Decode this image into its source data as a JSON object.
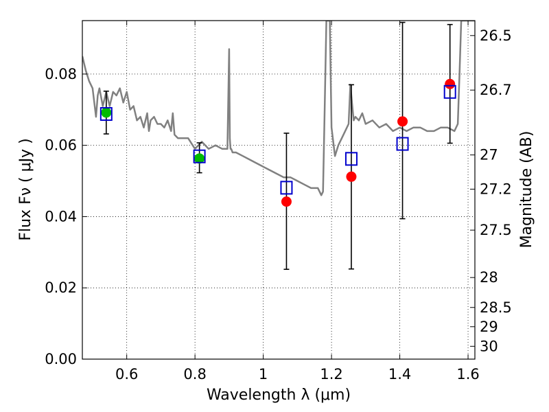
{
  "chart_data": {
    "type": "scatter",
    "xlabel": "Wavelength  λ (μm)",
    "ylabel": "Flux  Fν  ( μJy )",
    "y2label": "Magnitude (AB)",
    "xlim": [
      0.47,
      1.62
    ],
    "ylim": [
      0.0,
      0.095
    ],
    "grid": true,
    "x_ticks": [
      0.6,
      0.8,
      1.0,
      1.2,
      1.4,
      1.6
    ],
    "x_tick_labels": [
      "0.6",
      "0.8",
      "1",
      "1.2",
      "1.4",
      "1.6"
    ],
    "y_ticks": [
      0.0,
      0.02,
      0.04,
      0.06,
      0.08
    ],
    "y_tick_labels": [
      "0.00",
      "0.02",
      "0.04",
      "0.06",
      "0.08"
    ],
    "y2_ticks": [
      {
        "label": "26.5",
        "flux": 0.0908
      },
      {
        "label": "26.7",
        "flux": 0.0755
      },
      {
        "label": "27",
        "flux": 0.0573
      },
      {
        "label": "27.2",
        "flux": 0.0477
      },
      {
        "label": "27.5",
        "flux": 0.0362
      },
      {
        "label": "28",
        "flux": 0.0229
      },
      {
        "label": "28.5",
        "flux": 0.0145
      },
      {
        "label": "29",
        "flux": 0.0091
      },
      {
        "label": "30",
        "flux": 0.0036
      }
    ],
    "series": [
      {
        "name": "model-spectrum",
        "kind": "line",
        "color": "#808080",
        "x": [
          0.47,
          0.48,
          0.49,
          0.5,
          0.505,
          0.51,
          0.515,
          0.52,
          0.53,
          0.54,
          0.55,
          0.56,
          0.57,
          0.58,
          0.59,
          0.6,
          0.61,
          0.62,
          0.63,
          0.64,
          0.65,
          0.66,
          0.665,
          0.67,
          0.68,
          0.69,
          0.7,
          0.71,
          0.72,
          0.73,
          0.735,
          0.74,
          0.75,
          0.76,
          0.78,
          0.8,
          0.82,
          0.84,
          0.86,
          0.88,
          0.895,
          0.9,
          0.902,
          0.904,
          0.906,
          0.91,
          0.92,
          0.94,
          0.96,
          0.98,
          1.0,
          1.02,
          1.04,
          1.06,
          1.08,
          1.1,
          1.12,
          1.14,
          1.16,
          1.17,
          1.175,
          1.18,
          1.185,
          1.19,
          1.195,
          1.2,
          1.21,
          1.22,
          1.23,
          1.24,
          1.25,
          1.255,
          1.26,
          1.265,
          1.27,
          1.28,
          1.29,
          1.3,
          1.32,
          1.34,
          1.36,
          1.38,
          1.4,
          1.42,
          1.44,
          1.46,
          1.48,
          1.5,
          1.52,
          1.54,
          1.56,
          1.57,
          1.575,
          1.58,
          1.59,
          1.6,
          1.61,
          1.62
        ],
        "y": [
          0.085,
          0.081,
          0.078,
          0.076,
          0.072,
          0.068,
          0.074,
          0.076,
          0.071,
          0.075,
          0.071,
          0.075,
          0.074,
          0.076,
          0.072,
          0.075,
          0.07,
          0.071,
          0.067,
          0.068,
          0.065,
          0.069,
          0.064,
          0.067,
          0.068,
          0.066,
          0.066,
          0.065,
          0.067,
          0.064,
          0.069,
          0.063,
          0.062,
          0.062,
          0.062,
          0.059,
          0.061,
          0.059,
          0.06,
          0.059,
          0.059,
          0.087,
          0.062,
          0.059,
          0.059,
          0.058,
          0.058,
          0.057,
          0.056,
          0.055,
          0.054,
          0.053,
          0.052,
          0.051,
          0.051,
          0.05,
          0.049,
          0.048,
          0.048,
          0.046,
          0.047,
          0.07,
          0.095,
          0.095,
          0.095,
          0.065,
          0.057,
          0.06,
          0.062,
          0.064,
          0.066,
          0.077,
          0.072,
          0.067,
          0.068,
          0.067,
          0.069,
          0.066,
          0.067,
          0.065,
          0.066,
          0.064,
          0.065,
          0.064,
          0.065,
          0.065,
          0.064,
          0.064,
          0.065,
          0.065,
          0.064,
          0.066,
          0.08,
          0.095,
          0.095,
          0.095,
          0.095,
          0.095
        ]
      },
      {
        "name": "observed-red",
        "kind": "points",
        "marker": "circle",
        "color": "#ff0000",
        "x": [
          1.068,
          1.258,
          1.408,
          1.547
        ],
        "y": [
          0.0442,
          0.0512,
          0.0667,
          0.0772
        ]
      },
      {
        "name": "observed-green",
        "kind": "points",
        "marker": "circle",
        "color": "#00bb00",
        "x": [
          0.54,
          0.813
        ],
        "y": [
          0.0692,
          0.0563
        ]
      },
      {
        "name": "model-photometry",
        "kind": "points",
        "marker": "open-square",
        "color": "#0000cc",
        "x": [
          0.54,
          0.813,
          1.068,
          1.258,
          1.408,
          1.547
        ],
        "y": [
          0.0688,
          0.0569,
          0.0481,
          0.0562,
          0.0604,
          0.075
        ]
      }
    ],
    "errorbars": {
      "color": "#000000",
      "x": [
        0.54,
        0.813,
        1.068,
        1.258,
        1.408,
        1.547
      ],
      "low": [
        0.0632,
        0.0523,
        0.0252,
        0.0253,
        0.0394,
        0.0606
      ],
      "high": [
        0.0752,
        0.0607,
        0.0634,
        0.077,
        0.0945,
        0.0939
      ]
    }
  }
}
